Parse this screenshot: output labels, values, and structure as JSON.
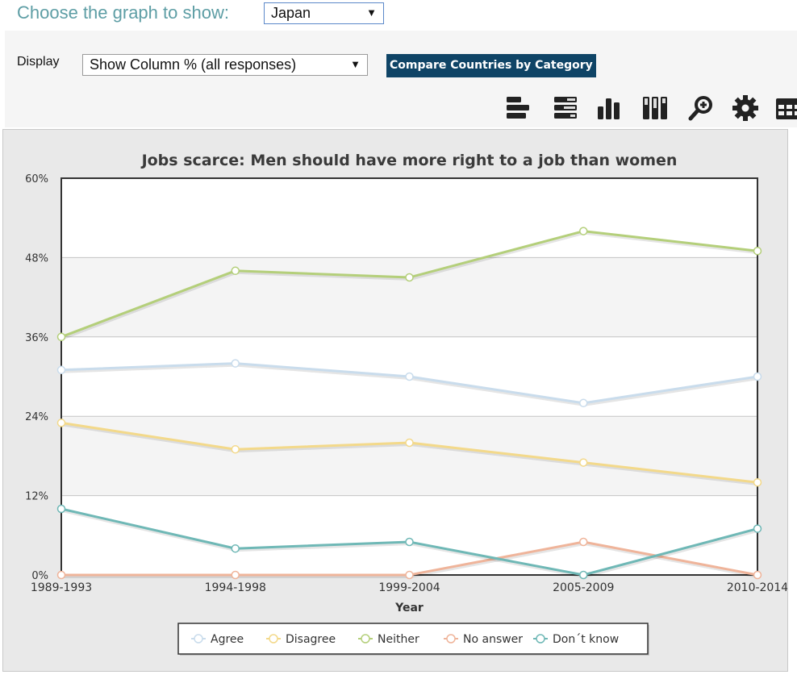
{
  "header": {
    "choose_label": "Choose the graph to show:",
    "country_value": "Japan"
  },
  "toolbar": {
    "display_label": "Display",
    "display_value": "Show Column % (all responses)",
    "compare_label": "Compare Countries by Category",
    "accent_color": "#0f4466",
    "icons": [
      "horizontal-bar-chart-icon",
      "stacked-horizontal-bar-icon",
      "vertical-bar-chart-icon",
      "stacked-vertical-bar-icon",
      "zoom-icon",
      "gear-icon",
      "table-icon"
    ]
  },
  "chart_data": {
    "type": "line",
    "title": "Jobs scarce: Men should have more right to a job than women",
    "xlabel": "Year",
    "ylabel": "",
    "categories": [
      "1989-1993",
      "1994-1998",
      "1999-2004",
      "2005-2009",
      "2010-2014"
    ],
    "y_ticks": [
      "0%",
      "12%",
      "24%",
      "36%",
      "48%",
      "60%"
    ],
    "ylim": [
      0,
      60
    ],
    "grid": true,
    "legend_position": "bottom",
    "series": [
      {
        "name": "Agree",
        "color": "#c9dcec",
        "values": [
          31,
          32,
          30,
          26,
          30
        ]
      },
      {
        "name": "Disagree",
        "color": "#f3d98a",
        "values": [
          23,
          19,
          20,
          17,
          14
        ]
      },
      {
        "name": "Neither",
        "color": "#b4cf7a",
        "values": [
          36,
          46,
          45,
          52,
          49
        ]
      },
      {
        "name": "No answer",
        "color": "#efb49a",
        "values": [
          0,
          0,
          0,
          5,
          0
        ]
      },
      {
        "name": "Don´t know",
        "color": "#6fb8b6",
        "values": [
          10,
          4,
          5,
          0,
          7
        ]
      }
    ]
  }
}
